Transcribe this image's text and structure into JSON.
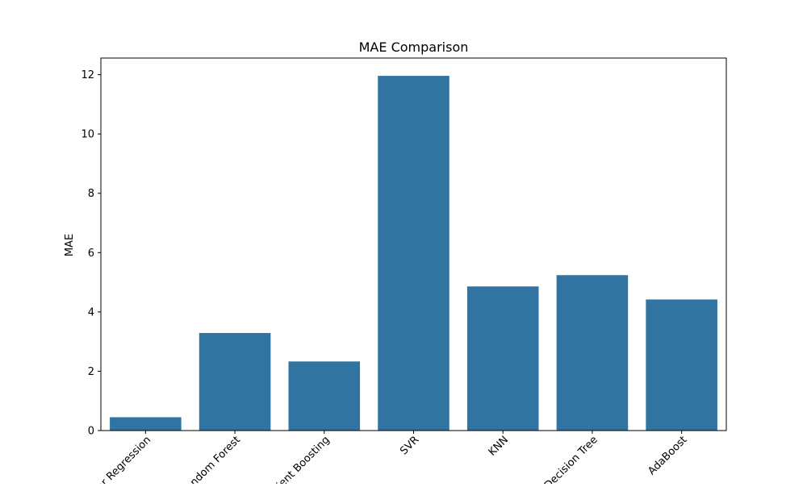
{
  "chart_data": {
    "type": "bar",
    "title": "MAE Comparison",
    "xlabel": "",
    "ylabel": "MAE",
    "categories": [
      "Linear Regression",
      "Random Forest",
      "Gradient Boosting",
      "SVR",
      "KNN",
      "Decision Tree",
      "AdaBoost"
    ],
    "values": [
      0.45,
      3.29,
      2.33,
      11.96,
      4.86,
      5.24,
      4.42
    ],
    "ylim": [
      0,
      12.56
    ],
    "yticks": [
      0,
      2,
      4,
      6,
      8,
      10,
      12
    ],
    "grid": false,
    "bar_color": "#3274a1"
  }
}
